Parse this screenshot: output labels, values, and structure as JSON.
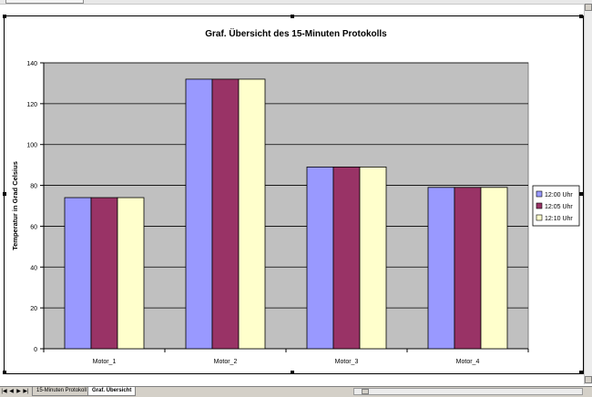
{
  "chart_data": {
    "type": "bar",
    "title": "Graf. Übersicht des 15-Minuten Protokolls",
    "ylabel": "Temperatur in Grad Celsius",
    "xlabel": "",
    "categories": [
      "Motor_1",
      "Motor_2",
      "Motor_3",
      "Motor_4"
    ],
    "series": [
      {
        "name": "12:00 Uhr",
        "values": [
          74,
          132,
          89,
          79
        ],
        "color": "#9999ff"
      },
      {
        "name": "12:05 Uhr",
        "values": [
          74,
          132,
          89,
          79
        ],
        "color": "#993366"
      },
      {
        "name": "12:10 Uhr",
        "values": [
          74,
          132,
          89,
          79
        ],
        "color": "#ffffcc"
      }
    ],
    "ylim": [
      0,
      140
    ],
    "yticks": [
      "0",
      "20",
      "40",
      "60",
      "80",
      "100",
      "120",
      "140"
    ],
    "grid": true,
    "legend": "right",
    "plot_background": "#c0c0c0"
  },
  "sheet_tabs": [
    {
      "label": "15-Minuten Protokoll",
      "active": false
    },
    {
      "label": "Graf. Übersicht",
      "active": true
    }
  ],
  "nav_icons": [
    "first-sheet-icon",
    "prev-sheet-icon",
    "next-sheet-icon",
    "last-sheet-icon"
  ]
}
